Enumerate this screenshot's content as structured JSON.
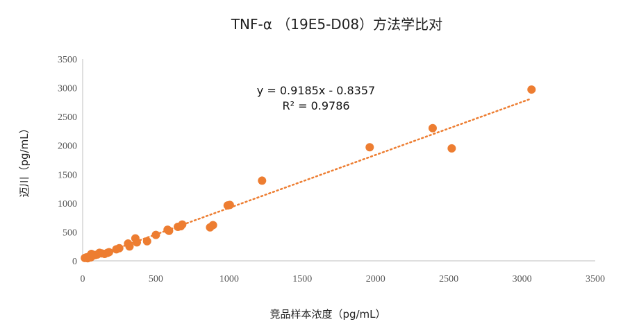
{
  "chart_data": {
    "type": "scatter",
    "title": "TNF-α （19E5-D08）方法学比对",
    "xlabel": "竞品样本浓度（pg/mL）",
    "ylabel": "迈川（pg/mL）",
    "xlim": [
      0,
      3500
    ],
    "ylim": [
      0,
      3500
    ],
    "xticks": [
      0,
      500,
      1000,
      1500,
      2000,
      2500,
      3000,
      3500
    ],
    "yticks": [
      0,
      500,
      1000,
      1500,
      2000,
      2500,
      3000,
      3500
    ],
    "grid": false,
    "point_color": "#ED7D31",
    "trendline": {
      "type": "linear",
      "slope": 0.9185,
      "intercept": -0.8357,
      "style": "dotted",
      "equation_label": "y = 0.9185x - 0.8357",
      "r2_label": "R² = 0.9786"
    },
    "points": [
      [
        15,
        50
      ],
      [
        25,
        60
      ],
      [
        35,
        45
      ],
      [
        45,
        80
      ],
      [
        55,
        60
      ],
      [
        60,
        120
      ],
      [
        70,
        90
      ],
      [
        85,
        100
      ],
      [
        100,
        110
      ],
      [
        115,
        140
      ],
      [
        130,
        130
      ],
      [
        150,
        120
      ],
      [
        170,
        140
      ],
      [
        180,
        150
      ],
      [
        230,
        200
      ],
      [
        250,
        220
      ],
      [
        310,
        300
      ],
      [
        320,
        250
      ],
      [
        360,
        390
      ],
      [
        370,
        320
      ],
      [
        440,
        340
      ],
      [
        500,
        450
      ],
      [
        580,
        540
      ],
      [
        590,
        520
      ],
      [
        650,
        590
      ],
      [
        670,
        600
      ],
      [
        680,
        630
      ],
      [
        870,
        580
      ],
      [
        890,
        620
      ],
      [
        990,
        960
      ],
      [
        1005,
        970
      ],
      [
        1225,
        1390
      ],
      [
        1960,
        1970
      ],
      [
        2390,
        2300
      ],
      [
        2520,
        1950
      ],
      [
        3065,
        2970
      ]
    ]
  }
}
